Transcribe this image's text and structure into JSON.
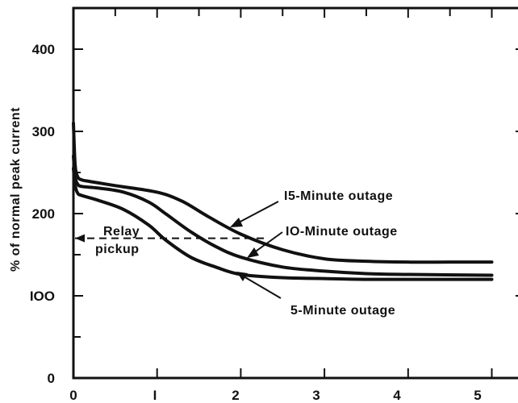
{
  "chart_data": {
    "type": "line",
    "title": "",
    "xlabel": "",
    "ylabel": "% of normal peak current",
    "xlim": [
      0,
      5.4
    ],
    "ylim": [
      0,
      450
    ],
    "xticks": [
      0,
      1,
      2,
      3,
      4,
      5
    ],
    "yticks": [
      0,
      100,
      200,
      300,
      400
    ],
    "grid": false,
    "series": [
      {
        "name": "15-Minute outage",
        "x": [
          0,
          0.02,
          0.05,
          0.1,
          0.2,
          0.5,
          1.0,
          1.3,
          1.6,
          2.0,
          2.5,
          3.0,
          3.5,
          4.0,
          4.5,
          5.0
        ],
        "y": [
          310,
          260,
          245,
          241,
          239,
          234,
          226,
          215,
          197,
          175,
          156,
          145,
          142,
          141,
          141,
          141
        ]
      },
      {
        "name": "10-Minute outage",
        "x": [
          0,
          0.02,
          0.05,
          0.1,
          0.3,
          0.6,
          0.9,
          1.1,
          1.4,
          1.7,
          2.0,
          2.5,
          3.0,
          3.5,
          4.0,
          5.0
        ],
        "y": [
          270,
          245,
          236,
          233,
          231,
          226,
          214,
          200,
          178,
          160,
          147,
          135,
          130,
          127,
          126,
          125
        ]
      },
      {
        "name": "5-Minute outage",
        "x": [
          0,
          0.02,
          0.05,
          0.1,
          0.3,
          0.6,
          0.9,
          1.1,
          1.4,
          1.7,
          2.0,
          2.5,
          3.0,
          3.5,
          4.0,
          5.0
        ],
        "y": [
          255,
          235,
          225,
          222,
          216,
          205,
          186,
          168,
          147,
          135,
          126,
          122,
          121,
          120,
          120,
          120
        ]
      }
    ],
    "reference_line": {
      "label": "Relay pickup",
      "y": 170,
      "style": "dashed"
    },
    "annotations": [
      {
        "text": "15-Minute outage",
        "arrow_to": [
          1.9,
          183
        ]
      },
      {
        "text": "IO-Minute outage",
        "arrow_to": [
          2.3,
          170
        ]
      },
      {
        "text": "5-Minute outage",
        "arrow_to": [
          2.0,
          126
        ]
      }
    ],
    "colors": {
      "line": "#111111",
      "background": "#ffffff"
    }
  },
  "annotation_labels": {
    "fifteen": "I5-Minute outage",
    "ten": "IO-Minute outage",
    "five": "5-Minute outage",
    "relay_line1": "Relay",
    "relay_line2": "pickup"
  },
  "tick_text": {
    "x": [
      "0",
      "I",
      "2",
      "3",
      "4",
      "5"
    ],
    "y": [
      "0",
      "IOO",
      "200",
      "300",
      "400"
    ]
  }
}
